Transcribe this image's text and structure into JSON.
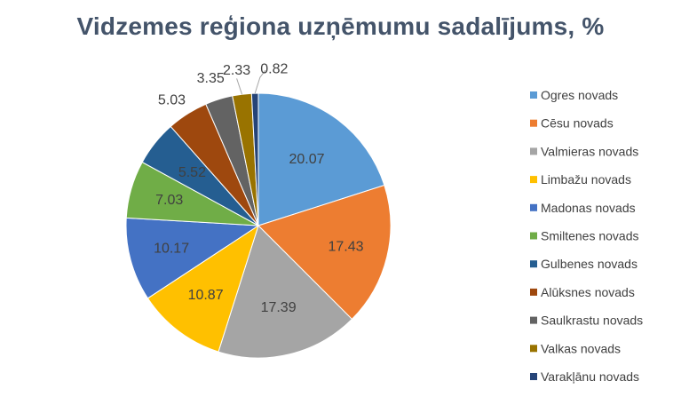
{
  "chart_data": {
    "type": "pie",
    "title": "Vidzemes reģiona uzņēmumu sadalījums, %",
    "legend_position": "right",
    "slices": [
      {
        "name": "Ogres novads",
        "value": 20.07,
        "label": "20.07",
        "color": "#5b9bd5"
      },
      {
        "name": "Cēsu novads",
        "value": 17.43,
        "label": "17.43",
        "color": "#ed7d31"
      },
      {
        "name": "Valmieras novads",
        "value": 17.39,
        "label": "17.39",
        "color": "#a5a5a5"
      },
      {
        "name": "Limbažu novads",
        "value": 10.87,
        "label": "10.87",
        "color": "#ffc000"
      },
      {
        "name": "Madonas novads",
        "value": 10.17,
        "label": "10.17",
        "color": "#4472c4"
      },
      {
        "name": "Smiltenes novads",
        "value": 7.03,
        "label": "7.03",
        "color": "#70ad47"
      },
      {
        "name": "Gulbenes novads",
        "value": 5.52,
        "label": "5.52",
        "color": "#255e91"
      },
      {
        "name": "Alūksnes novads",
        "value": 5.03,
        "label": "5.03",
        "color": "#9e480e"
      },
      {
        "name": "Saulkrastu novads",
        "value": 3.35,
        "label": "3.35",
        "color": "#636363"
      },
      {
        "name": "Valkas novads",
        "value": 2.33,
        "label": "2.33",
        "color": "#997300"
      },
      {
        "name": "Varakļānu novads",
        "value": 0.82,
        "label": "0.82",
        "color": "#264478"
      }
    ]
  }
}
